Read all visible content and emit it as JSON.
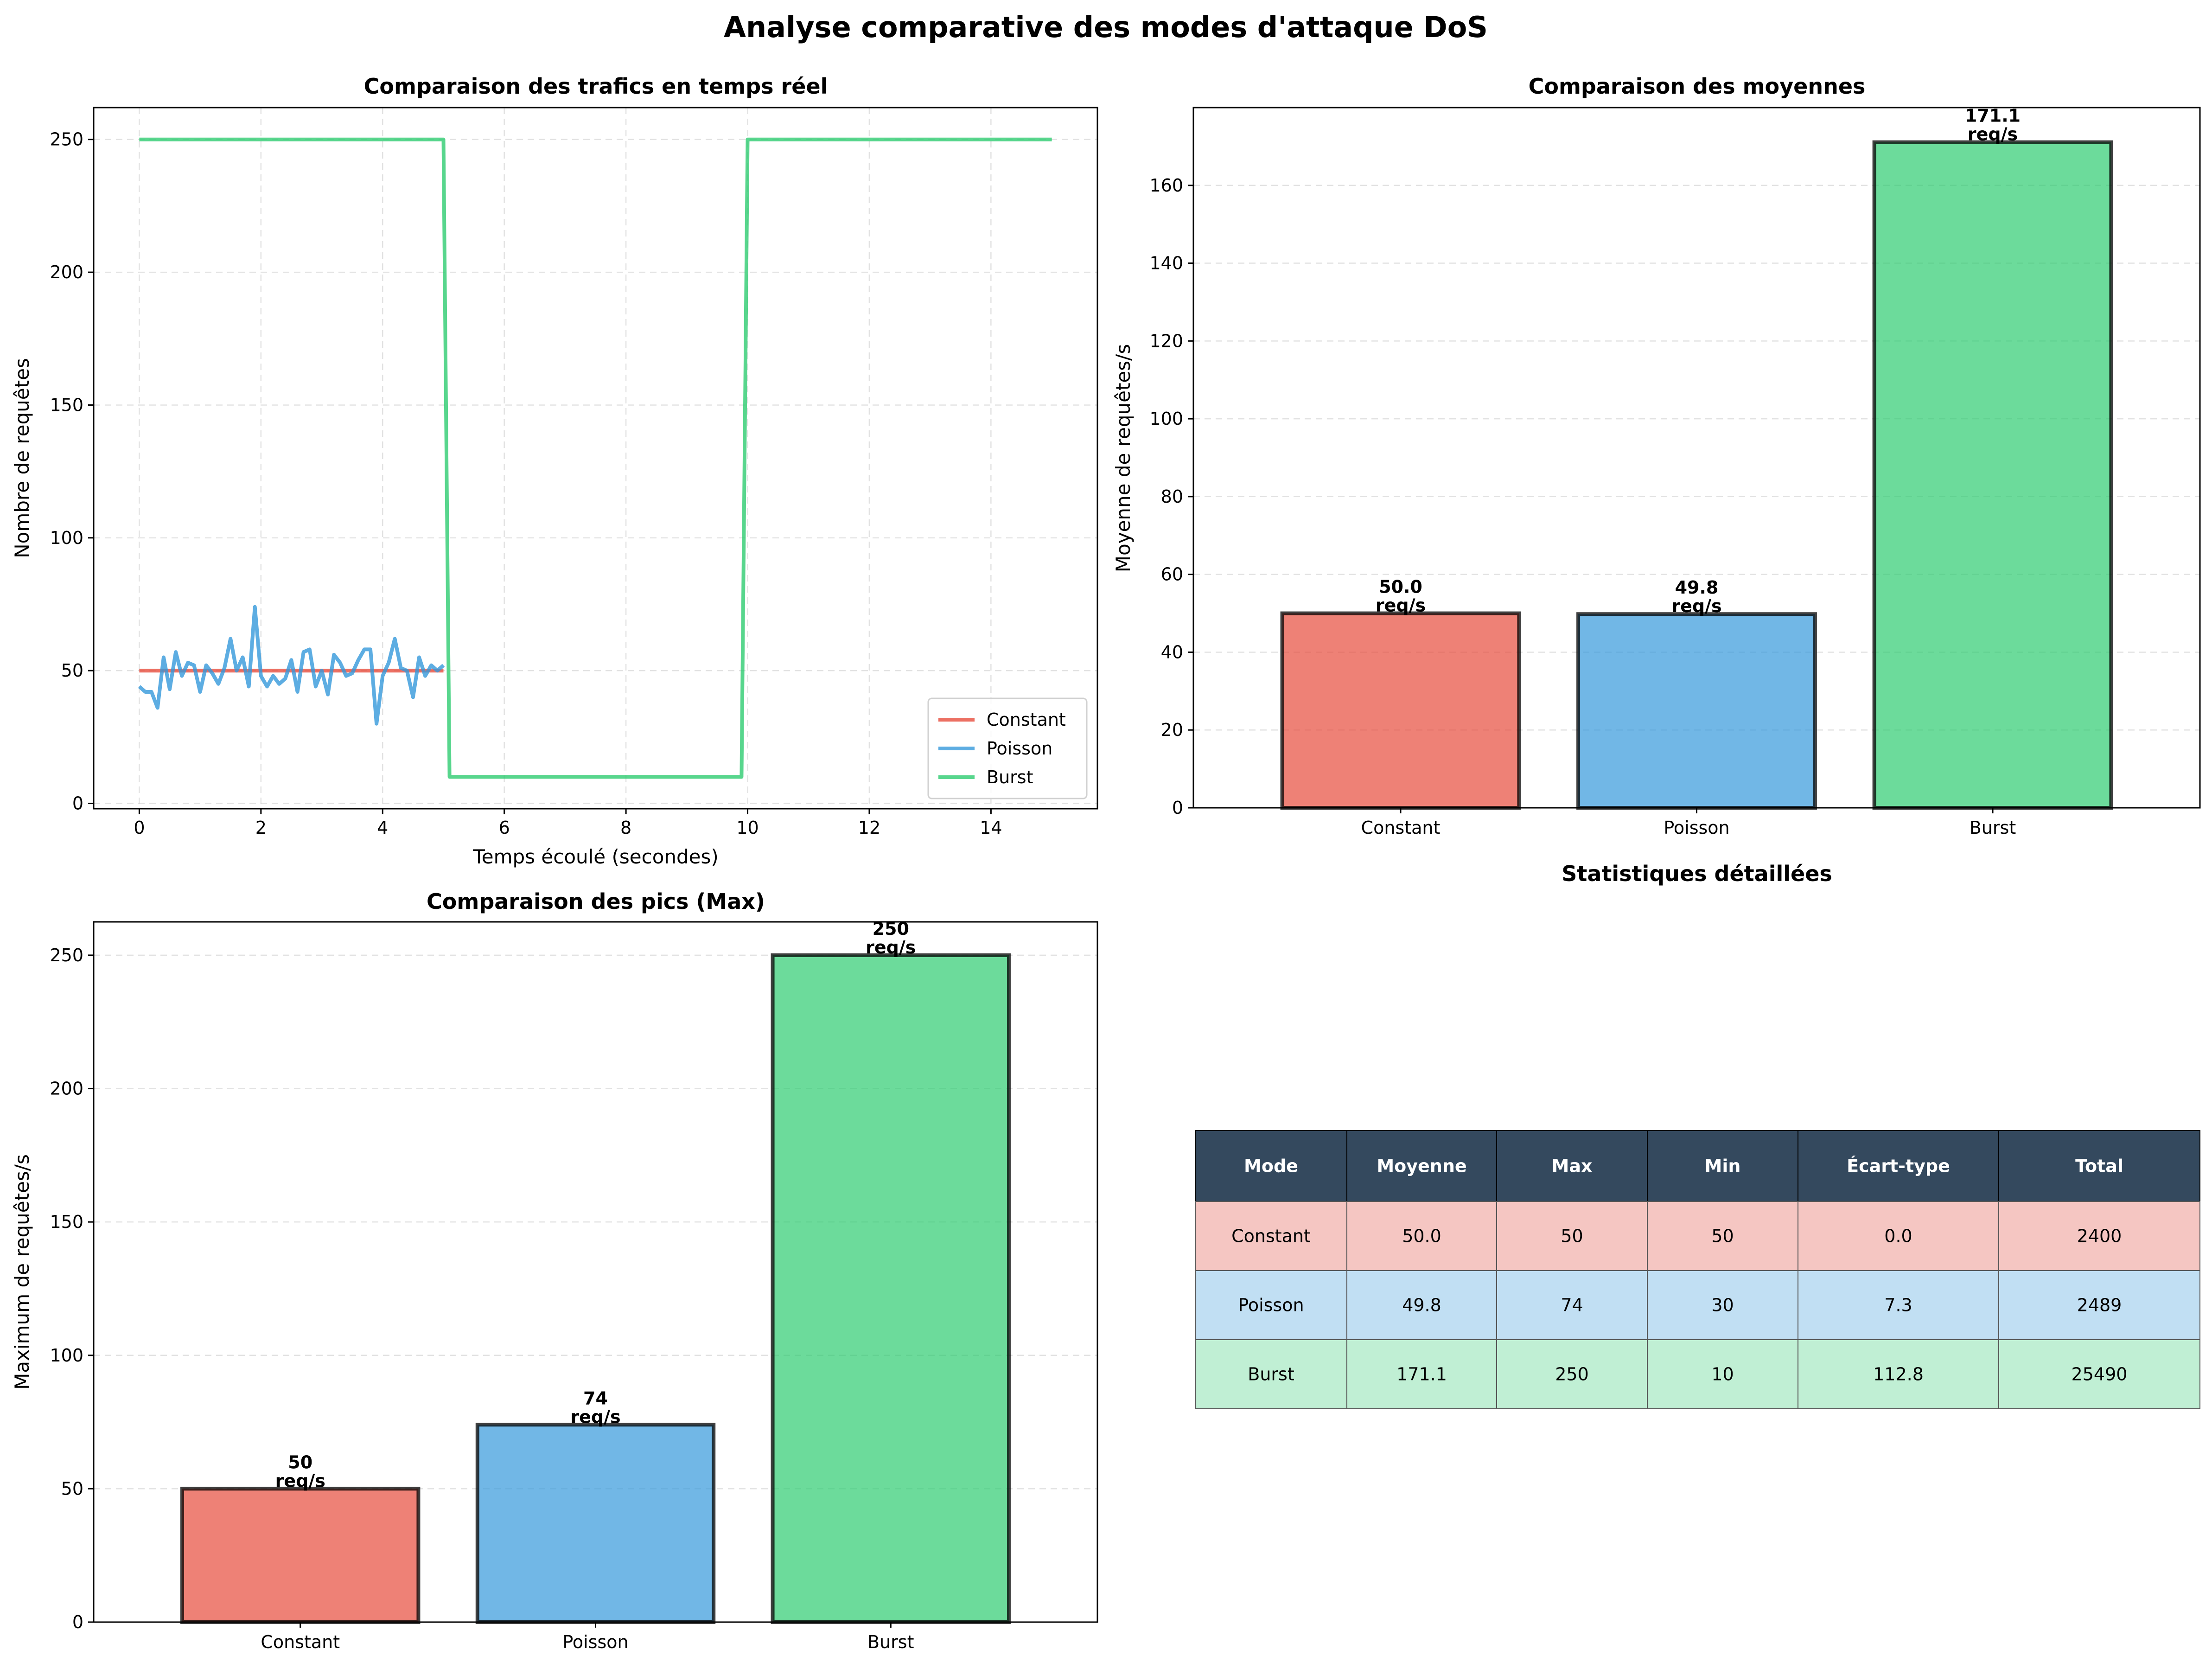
{
  "suptitle": "Analyse comparative des modes d'attaque DoS",
  "colors": {
    "Constant": "#e74c3c",
    "Poisson": "#3498db",
    "Burst": "#2ecc71",
    "table_header": "#34495e"
  },
  "chart_data": [
    {
      "type": "line",
      "title": "Comparaison des trafics en temps réel",
      "xlabel": "Temps écoulé (secondes)",
      "ylabel": "Nombre de requêtes",
      "xlim": [
        -0.75,
        15.75
      ],
      "ylim": [
        -2,
        262
      ],
      "xticks": [
        "0",
        "2",
        "4",
        "6",
        "8",
        "10",
        "12",
        "14"
      ],
      "yticks": [
        "0",
        "50",
        "100",
        "150",
        "200",
        "250"
      ],
      "grid": true,
      "legend_position": "lower right",
      "series": [
        {
          "name": "Constant",
          "color": "#e74c3c",
          "x": [
            0,
            5
          ],
          "y": [
            50,
            50
          ]
        },
        {
          "name": "Poisson",
          "color": "#3498db",
          "x": [
            0,
            0.1,
            0.2,
            0.3,
            0.4,
            0.5,
            0.6,
            0.7,
            0.8,
            0.9,
            1.0,
            1.1,
            1.2,
            1.3,
            1.4,
            1.5,
            1.6,
            1.7,
            1.8,
            1.9,
            2.0,
            2.1,
            2.2,
            2.3,
            2.4,
            2.5,
            2.6,
            2.7,
            2.8,
            2.9,
            3.0,
            3.1,
            3.2,
            3.3,
            3.4,
            3.5,
            3.6,
            3.7,
            3.8,
            3.9,
            4.0,
            4.1,
            4.2,
            4.3,
            4.4,
            4.5,
            4.6,
            4.7,
            4.8,
            4.9,
            5.0
          ],
          "y": [
            44,
            42,
            42,
            36,
            55,
            43,
            57,
            48,
            53,
            52,
            42,
            52,
            49,
            45,
            51,
            62,
            50,
            55,
            44,
            74,
            48,
            44,
            48,
            45,
            47,
            54,
            42,
            57,
            58,
            44,
            50,
            41,
            56,
            53,
            48,
            49,
            54,
            58,
            58,
            30,
            48,
            53,
            62,
            51,
            50,
            40,
            55,
            48,
            52,
            50,
            52
          ]
        },
        {
          "name": "Burst",
          "color": "#2ecc71",
          "x": [
            0,
            5,
            5.1,
            9.9,
            10,
            15
          ],
          "y": [
            250,
            250,
            10,
            10,
            250,
            250
          ]
        }
      ]
    },
    {
      "type": "bar",
      "title": "Comparaison des moyennes",
      "ylabel": "Moyenne de requêtes/s",
      "categories": [
        "Constant",
        "Poisson",
        "Burst"
      ],
      "values": [
        50.0,
        49.8,
        171.1
      ],
      "value_labels": [
        "50.0",
        "49.8",
        "171.1"
      ],
      "unit_label": "req/s",
      "ylim": [
        0,
        180
      ],
      "yticks": [
        "0",
        "20",
        "40",
        "60",
        "80",
        "100",
        "120",
        "140",
        "160"
      ],
      "grid": true
    },
    {
      "type": "bar",
      "title": "Comparaison des pics (Max)",
      "ylabel": "Maximum de requêtes/s",
      "categories": [
        "Constant",
        "Poisson",
        "Burst"
      ],
      "values": [
        50,
        74,
        250
      ],
      "value_labels": [
        "50",
        "74",
        "250"
      ],
      "unit_label": "req/s",
      "ylim": [
        0,
        262.5
      ],
      "yticks": [
        "0",
        "50",
        "100",
        "150",
        "200",
        "250"
      ],
      "grid": true
    },
    {
      "type": "table",
      "title": "Statistiques détaillées",
      "columns": [
        "Mode",
        "Moyenne",
        "Max",
        "Min",
        "Écart-type",
        "Total"
      ],
      "rows": [
        [
          "Constant",
          "50.0",
          "50",
          "50",
          "0.0",
          "2400"
        ],
        [
          "Poisson",
          "49.8",
          "74",
          "30",
          "7.3",
          "2489"
        ],
        [
          "Burst",
          "171.1",
          "250",
          "10",
          "112.8",
          "25490"
        ]
      ],
      "row_colors": [
        "#f5c6c2",
        "#c1dff3",
        "#c0efd4"
      ]
    }
  ]
}
